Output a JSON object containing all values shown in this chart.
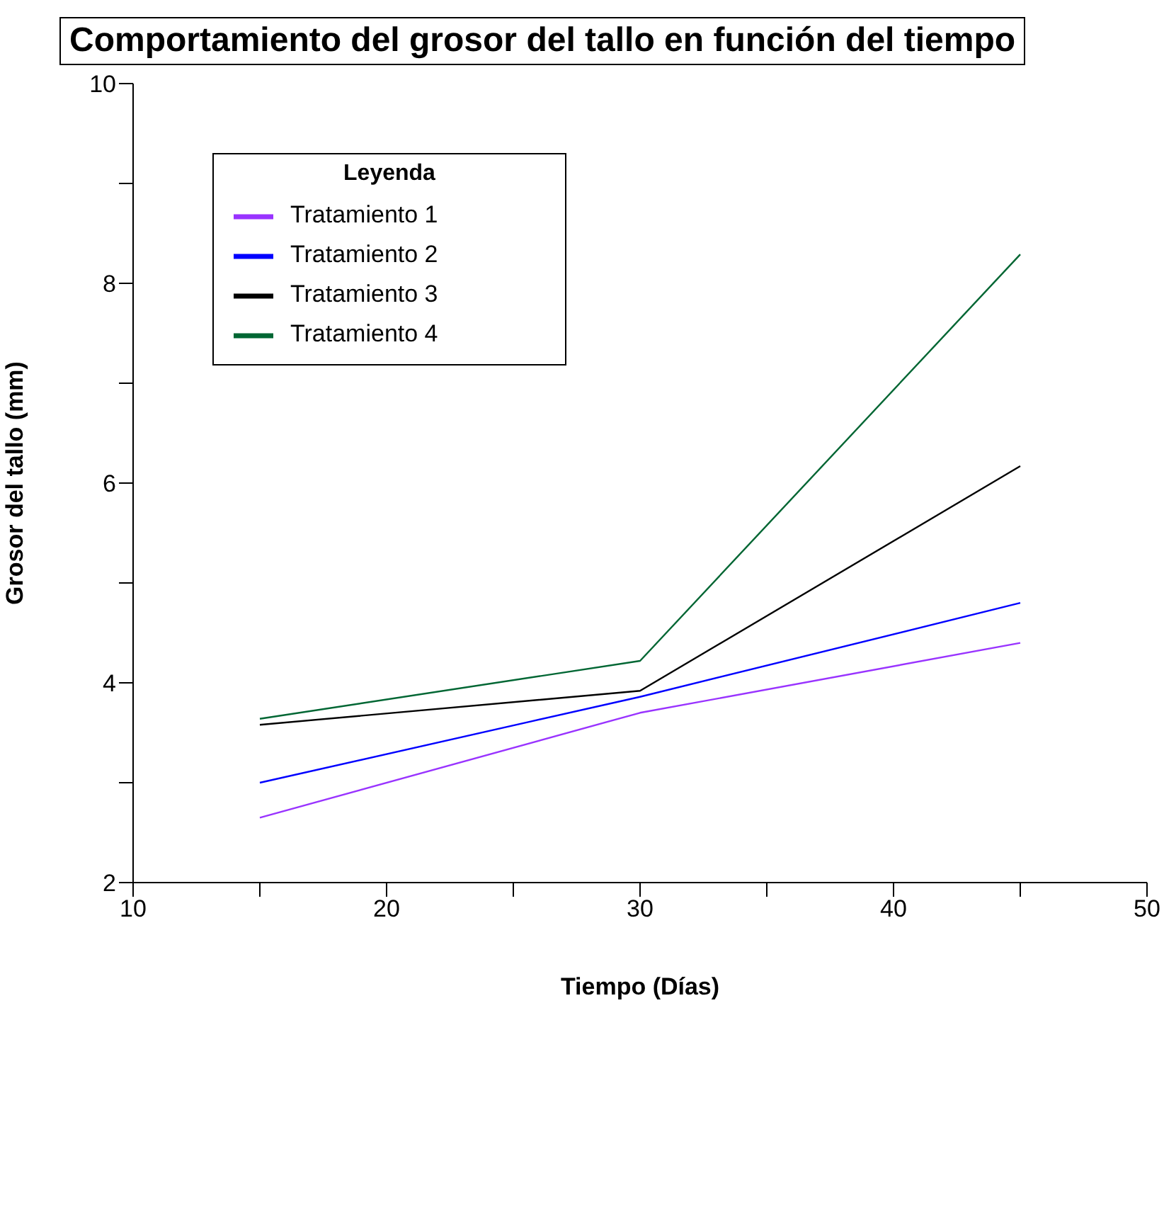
{
  "chart_data": {
    "type": "line",
    "title": "Comportamiento del grosor del tallo en función del tiempo",
    "xlabel": "Tiempo (Días)",
    "ylabel": "Grosor del tallo (mm)",
    "legend_title": "Leyenda",
    "legend": "top left",
    "grid": false,
    "marker": "none",
    "line_style": "solid",
    "x": [
      15,
      30,
      45
    ],
    "series": [
      {
        "name": "Tratamiento 1",
        "color": "#9933ff",
        "values": [
          2.65,
          3.7,
          4.4
        ]
      },
      {
        "name": "Tratamiento 2",
        "color": "#0000ff",
        "values": [
          3.0,
          3.86,
          4.8
        ]
      },
      {
        "name": "Tratamiento 3",
        "color": "#000000",
        "values": [
          3.58,
          3.92,
          6.17
        ]
      },
      {
        "name": "Tratamiento 4",
        "color": "#006633",
        "values": [
          3.64,
          4.22,
          8.29
        ]
      }
    ],
    "xlim": [
      10,
      50
    ],
    "xticks": [
      10,
      {
        "value": 15,
        "label": null
      },
      20,
      {
        "value": 25,
        "label": null
      },
      30,
      {
        "value": 35,
        "label": null
      },
      40,
      {
        "value": 45,
        "label": null
      },
      50
    ],
    "ylim": [
      2,
      10
    ],
    "yticks": [
      2,
      {
        "value": 3,
        "label": null
      },
      4,
      {
        "value": 5,
        "label": null
      },
      6,
      {
        "value": 7,
        "label": null
      },
      8,
      {
        "value": 9,
        "label": null
      },
      10
    ]
  }
}
